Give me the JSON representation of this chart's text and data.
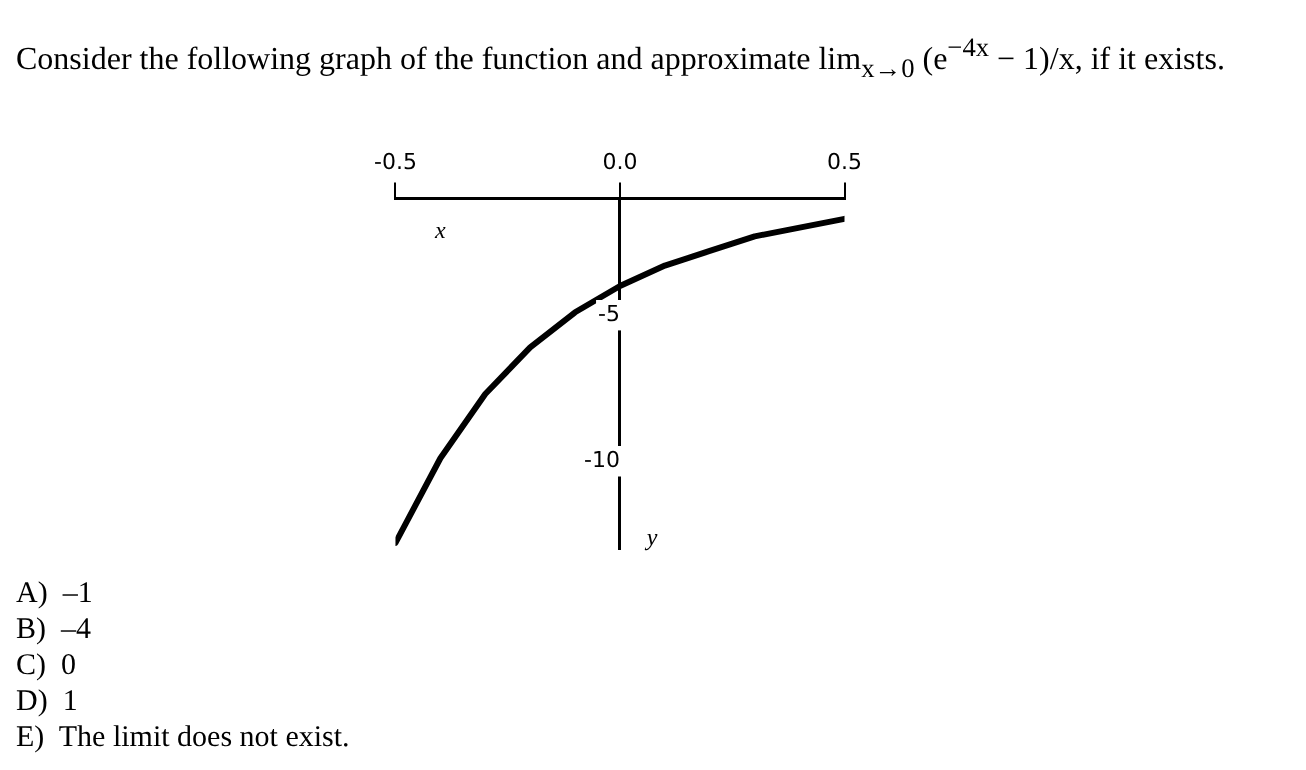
{
  "chart_data": {
    "type": "line",
    "title": "Consider the following graph of the function and approximate lim$_{x→0}$ (e$^{−4x}$ − 1)/x, if it exists.",
    "xlabel": "x",
    "ylabel": "y",
    "x": [
      -0.5,
      -0.4,
      -0.3,
      -0.2,
      -0.1,
      0,
      0.1,
      0.2,
      0.3,
      0.4,
      0.5
    ],
    "series": [
      {
        "color": "#000000",
        "values": [
          -12.8,
          -9.9,
          -7.7,
          -6.1,
          -4.9,
          -4.0,
          -3.3,
          -2.8,
          -2.3,
          -2.0,
          -1.7
        ]
      }
    ],
    "xlim": [
      -0.5,
      0.5
    ],
    "xticks": [
      {
        "value": -0.5,
        "label": "-0.5"
      },
      {
        "value": 0,
        "label": "0.0"
      },
      {
        "value": 0.5,
        "label": "0.5"
      }
    ],
    "ylim": [
      -13,
      -1
    ],
    "yticks": [
      -5,
      -10
    ],
    "grid": false,
    "legend": false,
    "marker": "none",
    "line_style": "solid",
    "annotations": [
      "A)  –1",
      "B)  –4",
      "C)  0",
      "D)  1",
      "E)  The limit does not exist."
    ]
  }
}
